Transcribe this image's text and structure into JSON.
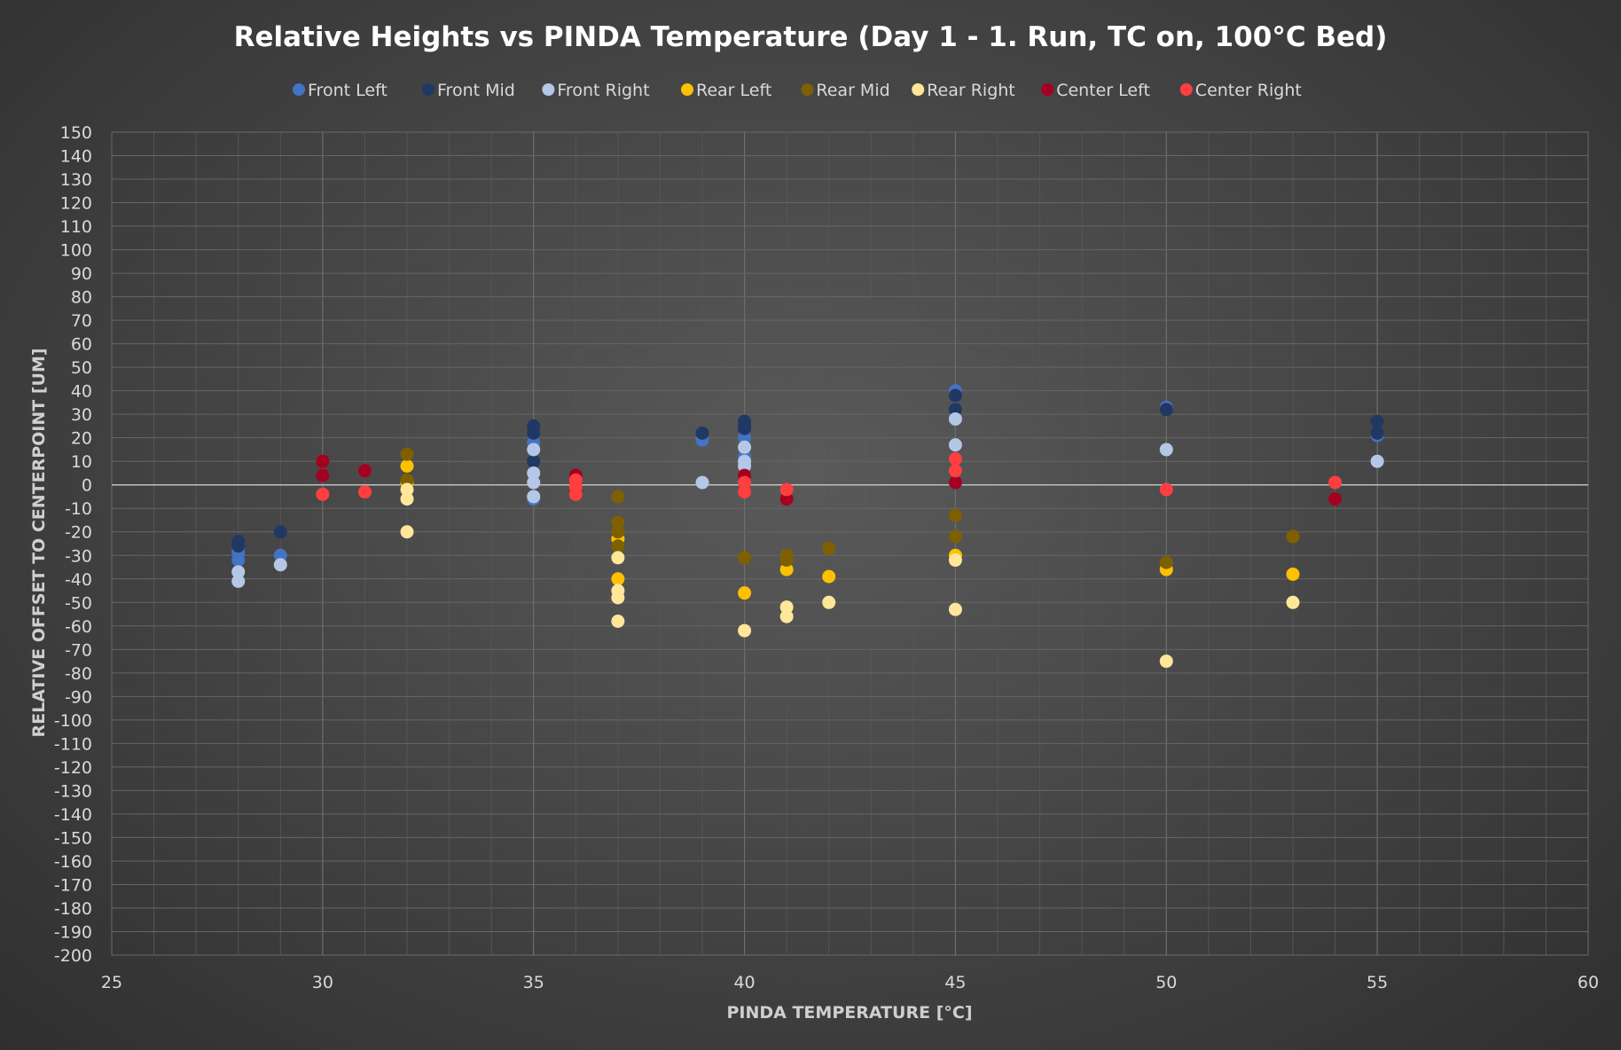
{
  "chart_data": {
    "type": "scatter",
    "title": "Relative Heights vs PINDA Temperature (Day 1 - 1. Run, TC on, 100°C Bed)",
    "xlabel": "PINDA TEMPERATURE [°C]",
    "ylabel": "RELATIVE OFFSET TO CENTERPOINT [UM]",
    "xlim": [
      25,
      60
    ],
    "ylim": [
      -200,
      150
    ],
    "x_major_step": 5,
    "y_major_step": 10,
    "grid": true,
    "legend_position": "top",
    "x_ticks": [
      "25",
      "30",
      "35",
      "40",
      "45",
      "50",
      "55",
      "60"
    ],
    "y_ticks": [
      "150",
      "140",
      "130",
      "120",
      "110",
      "100",
      "90",
      "80",
      "70",
      "60",
      "50",
      "40",
      "30",
      "20",
      "10",
      "0",
      "-10",
      "-20",
      "-30",
      "-40",
      "-50",
      "-60",
      "-70",
      "-80",
      "-90",
      "-100",
      "-110",
      "-120",
      "-130",
      "-140",
      "-150",
      "-160",
      "-170",
      "-180",
      "-190",
      "-200"
    ],
    "series": [
      {
        "name": "Front Left",
        "color": "#4472c4",
        "points": [
          [
            28,
            -29
          ],
          [
            28,
            -32
          ],
          [
            28,
            -27
          ],
          [
            29,
            -30
          ],
          [
            35,
            18
          ],
          [
            35,
            -6
          ],
          [
            39,
            19
          ],
          [
            40,
            20
          ],
          [
            40,
            12
          ],
          [
            45,
            40
          ],
          [
            50,
            33
          ],
          [
            55,
            21
          ]
        ]
      },
      {
        "name": "Front Mid",
        "color": "#203864",
        "points": [
          [
            28,
            -24
          ],
          [
            28,
            -26
          ],
          [
            29,
            -20
          ],
          [
            35,
            25
          ],
          [
            35,
            22
          ],
          [
            35,
            10
          ],
          [
            39,
            22
          ],
          [
            40,
            27
          ],
          [
            40,
            25
          ],
          [
            40,
            24
          ],
          [
            45,
            38
          ],
          [
            45,
            32
          ],
          [
            50,
            32
          ],
          [
            55,
            27
          ],
          [
            55,
            22
          ]
        ]
      },
      {
        "name": "Front Right",
        "color": "#b4c7e7",
        "points": [
          [
            28,
            -37
          ],
          [
            28,
            -41
          ],
          [
            29,
            -34
          ],
          [
            35,
            15
          ],
          [
            35,
            5
          ],
          [
            35,
            1
          ],
          [
            35,
            -5
          ],
          [
            39,
            1
          ],
          [
            40,
            16
          ],
          [
            40,
            10
          ],
          [
            40,
            8
          ],
          [
            45,
            28
          ],
          [
            45,
            17
          ],
          [
            50,
            15
          ],
          [
            55,
            10
          ]
        ]
      },
      {
        "name": "Rear Left",
        "color": "#ffc000",
        "points": [
          [
            32,
            8
          ],
          [
            32,
            1
          ],
          [
            37,
            -40
          ],
          [
            37,
            -23
          ],
          [
            40,
            -46
          ],
          [
            41,
            -36
          ],
          [
            42,
            -39
          ],
          [
            45,
            -30
          ],
          [
            50,
            -36
          ],
          [
            53,
            -38
          ]
        ]
      },
      {
        "name": "Rear Mid",
        "color": "#7f6000",
        "points": [
          [
            32,
            13
          ],
          [
            32,
            2
          ],
          [
            37,
            -5
          ],
          [
            37,
            -16
          ],
          [
            37,
            -20
          ],
          [
            37,
            -26
          ],
          [
            40,
            -31
          ],
          [
            41,
            -30
          ],
          [
            41,
            -32
          ],
          [
            42,
            -27
          ],
          [
            45,
            -13
          ],
          [
            45,
            -22
          ],
          [
            50,
            -33
          ],
          [
            53,
            -22
          ]
        ]
      },
      {
        "name": "Rear Right",
        "color": "#ffe699",
        "points": [
          [
            32,
            -2
          ],
          [
            32,
            -6
          ],
          [
            32,
            -20
          ],
          [
            37,
            -31
          ],
          [
            37,
            -45
          ],
          [
            37,
            -48
          ],
          [
            37,
            -58
          ],
          [
            40,
            -62
          ],
          [
            41,
            -52
          ],
          [
            41,
            -56
          ],
          [
            42,
            -50
          ],
          [
            45,
            -32
          ],
          [
            45,
            -53
          ],
          [
            50,
            -75
          ],
          [
            53,
            -50
          ]
        ]
      },
      {
        "name": "Center Left",
        "color": "#a50021",
        "points": [
          [
            30,
            10
          ],
          [
            30,
            4
          ],
          [
            31,
            6
          ],
          [
            36,
            4
          ],
          [
            36,
            -3
          ],
          [
            40,
            4
          ],
          [
            40,
            -3
          ],
          [
            41,
            -6
          ],
          [
            45,
            1
          ],
          [
            54,
            -6
          ]
        ]
      },
      {
        "name": "Center Right",
        "color": "#ff3f3f",
        "points": [
          [
            30,
            -4
          ],
          [
            31,
            -3
          ],
          [
            36,
            2
          ],
          [
            36,
            -1
          ],
          [
            36,
            -4
          ],
          [
            40,
            1
          ],
          [
            40,
            -3
          ],
          [
            41,
            -2
          ],
          [
            45,
            11
          ],
          [
            45,
            6
          ],
          [
            50,
            -2
          ],
          [
            54,
            1
          ]
        ]
      }
    ]
  }
}
